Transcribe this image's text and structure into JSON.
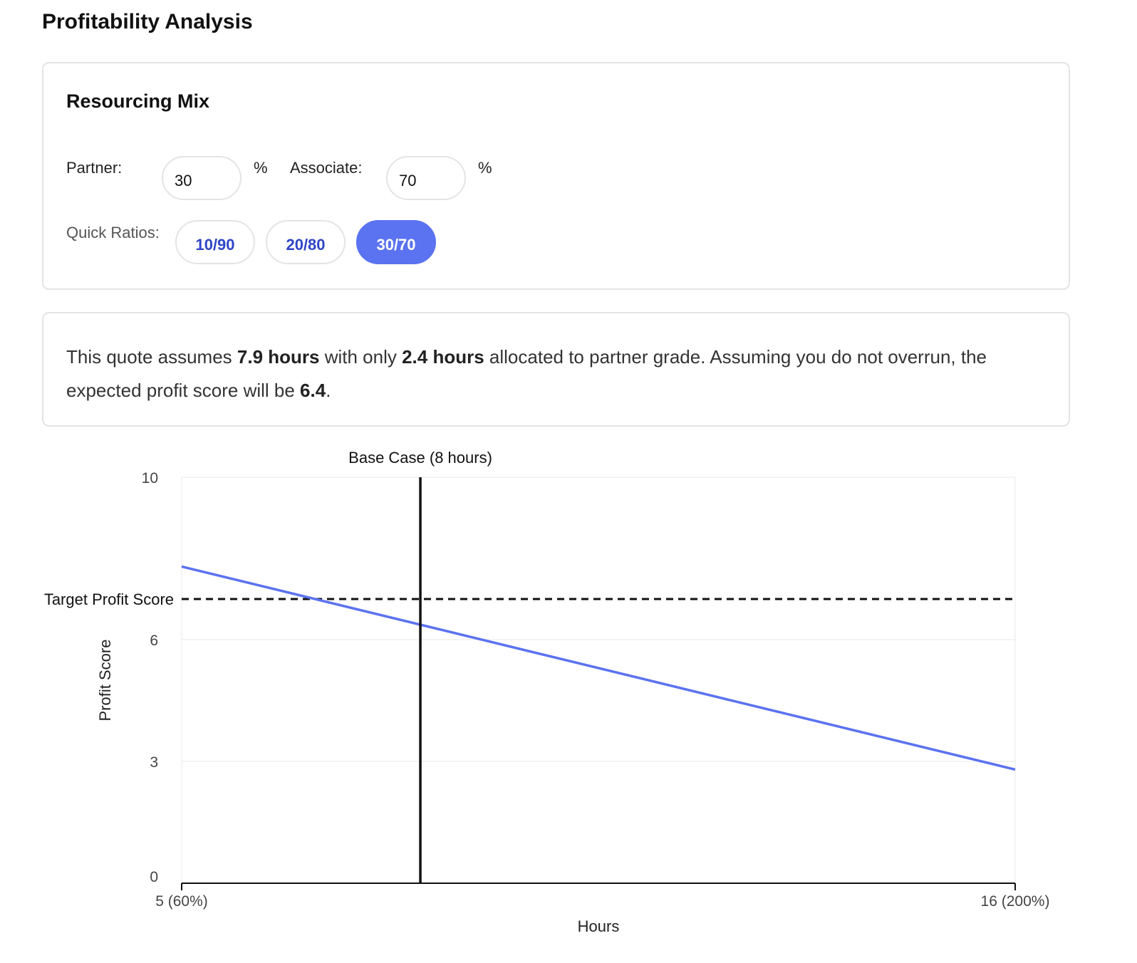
{
  "page": {
    "title": "Profitability Analysis"
  },
  "mix": {
    "title": "Resourcing Mix",
    "partner_label": "Partner:",
    "partner_value": "30",
    "associate_label": "Associate:",
    "associate_value": "70",
    "percent_symbol": "%",
    "quick_label": "Quick Ratios:",
    "ratios": [
      {
        "label": "10/90",
        "active": false
      },
      {
        "label": "20/80",
        "active": false
      },
      {
        "label": "30/70",
        "active": true
      }
    ]
  },
  "summary": {
    "prefix": "This quote assumes ",
    "total_hours": "7.9 hours",
    "middle": " with only ",
    "partner_hours": "2.4 hours",
    "suffix": " allocated to partner grade. Assuming you do not overrun, the expected profit score will be ",
    "score": "6.4",
    "end": "."
  },
  "colors": {
    "accent": "#5b73f0",
    "link": "#2f46c6",
    "border": "#e4e4e7"
  },
  "chart_data": {
    "type": "line",
    "xlabel": "Hours",
    "ylabel": "Profit Score",
    "xlim": [
      5,
      16
    ],
    "ylim": [
      0,
      10
    ],
    "x_ticks": [
      {
        "value": 5,
        "label": "5 (60%)"
      },
      {
        "value": 16,
        "label": "16 (200%)"
      }
    ],
    "y_ticks": [
      {
        "value": 0,
        "label": "0"
      },
      {
        "value": 3,
        "label": "3"
      },
      {
        "value": 6,
        "label": "6"
      },
      {
        "value": 10,
        "label": "10"
      }
    ],
    "series": [
      {
        "color": "#5b73f0",
        "points": [
          {
            "x": 5,
            "y": 7.8
          },
          {
            "x": 16,
            "y": 2.8
          }
        ]
      }
    ],
    "annotations": {
      "base_case": {
        "x": 8.15,
        "label": "Base Case (8 hours)"
      },
      "target": {
        "y": 7.0,
        "label": "Target Profit Score"
      }
    },
    "grid": true
  }
}
